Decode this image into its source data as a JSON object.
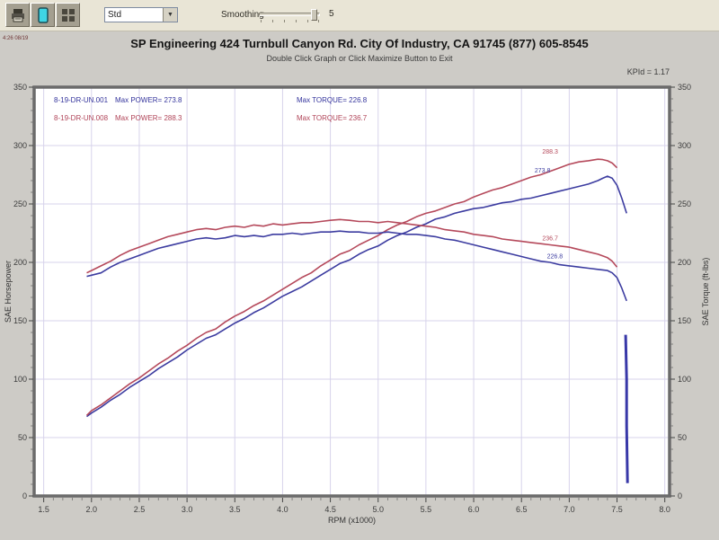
{
  "toolbar": {
    "buttons": [
      {
        "icon": "print-icon"
      },
      {
        "icon": "graph-page-icon"
      },
      {
        "icon": "grid-settings-icon"
      }
    ],
    "dropdown_value": "Std",
    "smoothing_label": "Smoothing",
    "smoothing_value": "5"
  },
  "header": {
    "corner_text": "4:26 08/19",
    "title": "SP Engineering 424 Turnbull Canyon Rd. City Of Industry, CA 91745 (877) 605-8545",
    "subtitle": "Double Click Graph or Click Maximize Button to Exit",
    "scale_note": "KPId = 1.17"
  },
  "legend": {
    "rows": [
      {
        "file": "8-19-DR-UN.001",
        "power": "Max POWER= 273.8",
        "torque": "Max TORQUE= 226.8",
        "color": "#34349c"
      },
      {
        "file": "8-19-DR-UN.008",
        "power": "Max POWER= 288.3",
        "torque": "Max TORQUE= 236.7",
        "color": "#b04458"
      }
    ]
  },
  "chart_data": {
    "type": "line",
    "xlabel": "RPM (x1000)",
    "ylabel_left": "SAE Horsepower",
    "ylabel_right": "SAE Torque (ft-lbs)",
    "xlim": [
      1.4,
      8.05
    ],
    "ylim": [
      0,
      350
    ],
    "x_ticks": [
      1.5,
      2.0,
      2.5,
      3.0,
      3.5,
      4.0,
      4.5,
      5.0,
      5.5,
      6.0,
      6.5,
      7.0,
      7.5,
      8.0
    ],
    "y_ticks": [
      0,
      50,
      100,
      150,
      200,
      250,
      300,
      350
    ],
    "grid": true,
    "grid_color": "#d7d3eb",
    "series": [
      {
        "name": "run-001-horsepower",
        "color": "#3c3ca0",
        "width": 1.6,
        "points": [
          [
            1.95,
            68
          ],
          [
            2.0,
            71
          ],
          [
            2.1,
            76
          ],
          [
            2.2,
            82
          ],
          [
            2.3,
            87
          ],
          [
            2.4,
            93
          ],
          [
            2.5,
            98
          ],
          [
            2.6,
            103
          ],
          [
            2.7,
            109
          ],
          [
            2.8,
            114
          ],
          [
            2.9,
            119
          ],
          [
            3.0,
            125
          ],
          [
            3.1,
            130
          ],
          [
            3.2,
            135
          ],
          [
            3.3,
            138
          ],
          [
            3.4,
            143
          ],
          [
            3.5,
            148
          ],
          [
            3.6,
            152
          ],
          [
            3.7,
            157
          ],
          [
            3.8,
            161
          ],
          [
            3.9,
            166
          ],
          [
            4.0,
            171
          ],
          [
            4.1,
            175
          ],
          [
            4.2,
            179
          ],
          [
            4.3,
            184
          ],
          [
            4.4,
            189
          ],
          [
            4.5,
            194
          ],
          [
            4.6,
            199
          ],
          [
            4.7,
            202
          ],
          [
            4.8,
            207
          ],
          [
            4.9,
            211
          ],
          [
            5.0,
            214
          ],
          [
            5.1,
            219
          ],
          [
            5.2,
            223
          ],
          [
            5.3,
            226
          ],
          [
            5.4,
            230
          ],
          [
            5.5,
            233
          ],
          [
            5.6,
            237
          ],
          [
            5.7,
            239
          ],
          [
            5.8,
            242
          ],
          [
            5.9,
            244
          ],
          [
            6.0,
            246
          ],
          [
            6.1,
            247
          ],
          [
            6.2,
            249
          ],
          [
            6.3,
            251
          ],
          [
            6.4,
            252
          ],
          [
            6.5,
            254
          ],
          [
            6.6,
            255
          ],
          [
            6.7,
            257
          ],
          [
            6.8,
            259
          ],
          [
            6.9,
            261
          ],
          [
            7.0,
            263
          ],
          [
            7.1,
            265
          ],
          [
            7.2,
            267
          ],
          [
            7.3,
            270
          ],
          [
            7.35,
            272
          ],
          [
            7.4,
            273.8
          ],
          [
            7.45,
            272
          ],
          [
            7.5,
            266
          ],
          [
            7.55,
            255
          ],
          [
            7.6,
            242
          ]
        ]
      },
      {
        "name": "run-008-horsepower",
        "color": "#b5495b",
        "width": 1.6,
        "points": [
          [
            1.95,
            69
          ],
          [
            2.0,
            73
          ],
          [
            2.1,
            78
          ],
          [
            2.2,
            84
          ],
          [
            2.3,
            90
          ],
          [
            2.4,
            96
          ],
          [
            2.5,
            101
          ],
          [
            2.6,
            107
          ],
          [
            2.7,
            113
          ],
          [
            2.8,
            118
          ],
          [
            2.9,
            124
          ],
          [
            3.0,
            129
          ],
          [
            3.1,
            135
          ],
          [
            3.2,
            140
          ],
          [
            3.3,
            143
          ],
          [
            3.4,
            149
          ],
          [
            3.5,
            154
          ],
          [
            3.6,
            158
          ],
          [
            3.7,
            163
          ],
          [
            3.8,
            167
          ],
          [
            3.9,
            172
          ],
          [
            4.0,
            177
          ],
          [
            4.1,
            182
          ],
          [
            4.2,
            187
          ],
          [
            4.3,
            191
          ],
          [
            4.4,
            197
          ],
          [
            4.5,
            202
          ],
          [
            4.6,
            207
          ],
          [
            4.7,
            210
          ],
          [
            4.8,
            215
          ],
          [
            4.9,
            219
          ],
          [
            5.0,
            223
          ],
          [
            5.1,
            228
          ],
          [
            5.2,
            232
          ],
          [
            5.3,
            235
          ],
          [
            5.4,
            239
          ],
          [
            5.5,
            242
          ],
          [
            5.6,
            244
          ],
          [
            5.7,
            247
          ],
          [
            5.8,
            250
          ],
          [
            5.9,
            252
          ],
          [
            6.0,
            256
          ],
          [
            6.1,
            259
          ],
          [
            6.2,
            262
          ],
          [
            6.3,
            264
          ],
          [
            6.4,
            267
          ],
          [
            6.5,
            270
          ],
          [
            6.6,
            273
          ],
          [
            6.7,
            275
          ],
          [
            6.8,
            278
          ],
          [
            6.9,
            281
          ],
          [
            7.0,
            284
          ],
          [
            7.1,
            286
          ],
          [
            7.2,
            287
          ],
          [
            7.3,
            288.3
          ],
          [
            7.35,
            288
          ],
          [
            7.4,
            287
          ],
          [
            7.45,
            285
          ],
          [
            7.5,
            281
          ]
        ]
      },
      {
        "name": "run-001-torque",
        "color": "#3c3ca0",
        "width": 1.6,
        "points": [
          [
            1.95,
            188
          ],
          [
            2.0,
            189
          ],
          [
            2.1,
            191
          ],
          [
            2.2,
            196
          ],
          [
            2.3,
            200
          ],
          [
            2.4,
            203
          ],
          [
            2.5,
            206
          ],
          [
            2.6,
            209
          ],
          [
            2.7,
            212
          ],
          [
            2.8,
            214
          ],
          [
            2.9,
            216
          ],
          [
            3.0,
            218
          ],
          [
            3.1,
            220
          ],
          [
            3.2,
            221
          ],
          [
            3.3,
            220
          ],
          [
            3.4,
            221
          ],
          [
            3.5,
            223
          ],
          [
            3.6,
            222
          ],
          [
            3.7,
            223
          ],
          [
            3.8,
            222
          ],
          [
            3.9,
            224
          ],
          [
            4.0,
            224
          ],
          [
            4.1,
            225
          ],
          [
            4.2,
            224
          ],
          [
            4.3,
            225
          ],
          [
            4.4,
            226
          ],
          [
            4.5,
            226
          ],
          [
            4.6,
            226.8
          ],
          [
            4.7,
            226
          ],
          [
            4.8,
            226
          ],
          [
            4.9,
            225
          ],
          [
            5.0,
            225
          ],
          [
            5.1,
            226
          ],
          [
            5.2,
            225
          ],
          [
            5.3,
            224
          ],
          [
            5.4,
            224
          ],
          [
            5.5,
            223
          ],
          [
            5.6,
            222
          ],
          [
            5.7,
            220
          ],
          [
            5.8,
            219
          ],
          [
            5.9,
            217
          ],
          [
            6.0,
            215
          ],
          [
            6.1,
            213
          ],
          [
            6.2,
            211
          ],
          [
            6.3,
            209
          ],
          [
            6.4,
            207
          ],
          [
            6.5,
            205
          ],
          [
            6.6,
            203
          ],
          [
            6.7,
            201
          ],
          [
            6.8,
            200
          ],
          [
            6.9,
            198
          ],
          [
            7.0,
            197
          ],
          [
            7.1,
            196
          ],
          [
            7.2,
            195
          ],
          [
            7.3,
            194
          ],
          [
            7.4,
            193
          ],
          [
            7.45,
            191
          ],
          [
            7.5,
            187
          ],
          [
            7.55,
            178
          ],
          [
            7.6,
            167
          ]
        ]
      },
      {
        "name": "run-008-torque",
        "color": "#b5495b",
        "width": 1.6,
        "points": [
          [
            1.95,
            191
          ],
          [
            2.0,
            193
          ],
          [
            2.1,
            197
          ],
          [
            2.2,
            201
          ],
          [
            2.3,
            206
          ],
          [
            2.4,
            210
          ],
          [
            2.5,
            213
          ],
          [
            2.6,
            216
          ],
          [
            2.7,
            219
          ],
          [
            2.8,
            222
          ],
          [
            2.9,
            224
          ],
          [
            3.0,
            226
          ],
          [
            3.1,
            228
          ],
          [
            3.2,
            229
          ],
          [
            3.3,
            228
          ],
          [
            3.4,
            230
          ],
          [
            3.5,
            231
          ],
          [
            3.6,
            230
          ],
          [
            3.7,
            232
          ],
          [
            3.8,
            231
          ],
          [
            3.9,
            233
          ],
          [
            4.0,
            232
          ],
          [
            4.1,
            233
          ],
          [
            4.2,
            234
          ],
          [
            4.3,
            234
          ],
          [
            4.4,
            235
          ],
          [
            4.5,
            236
          ],
          [
            4.6,
            236.7
          ],
          [
            4.7,
            236
          ],
          [
            4.8,
            235
          ],
          [
            4.9,
            235
          ],
          [
            5.0,
            234
          ],
          [
            5.1,
            235
          ],
          [
            5.2,
            234
          ],
          [
            5.3,
            233
          ],
          [
            5.4,
            232
          ],
          [
            5.5,
            231
          ],
          [
            5.6,
            230
          ],
          [
            5.7,
            228
          ],
          [
            5.8,
            227
          ],
          [
            5.9,
            226
          ],
          [
            6.0,
            224
          ],
          [
            6.1,
            223
          ],
          [
            6.2,
            222
          ],
          [
            6.3,
            220
          ],
          [
            6.4,
            219
          ],
          [
            6.5,
            218
          ],
          [
            6.6,
            217
          ],
          [
            6.7,
            216
          ],
          [
            6.8,
            215
          ],
          [
            6.9,
            214
          ],
          [
            7.0,
            213
          ],
          [
            7.1,
            211
          ],
          [
            7.2,
            209
          ],
          [
            7.3,
            207
          ],
          [
            7.4,
            204
          ],
          [
            7.45,
            201
          ],
          [
            7.5,
            196
          ]
        ]
      },
      {
        "name": "run-001-end-spike",
        "color": "#3838a8",
        "width": 3,
        "points": [
          [
            7.59,
            138
          ],
          [
            7.6,
            100
          ],
          [
            7.6,
            60
          ],
          [
            7.61,
            11
          ]
        ]
      }
    ],
    "point_labels": [
      {
        "text": "288.3",
        "rpm": 6.8,
        "value": 293,
        "color": "#b5495b"
      },
      {
        "text": "273.8",
        "rpm": 6.72,
        "value": 277,
        "color": "#3c3ca0"
      },
      {
        "text": "236.7",
        "rpm": 6.8,
        "value": 219,
        "color": "#b5495b"
      },
      {
        "text": "226.8",
        "rpm": 6.85,
        "value": 203.5,
        "color": "#3c3ca0"
      }
    ],
    "max_values": {
      "run_001_max_power": 273.8,
      "run_001_max_torque": 226.8,
      "run_008_max_power": 288.3,
      "run_008_max_torque": 236.7
    }
  }
}
